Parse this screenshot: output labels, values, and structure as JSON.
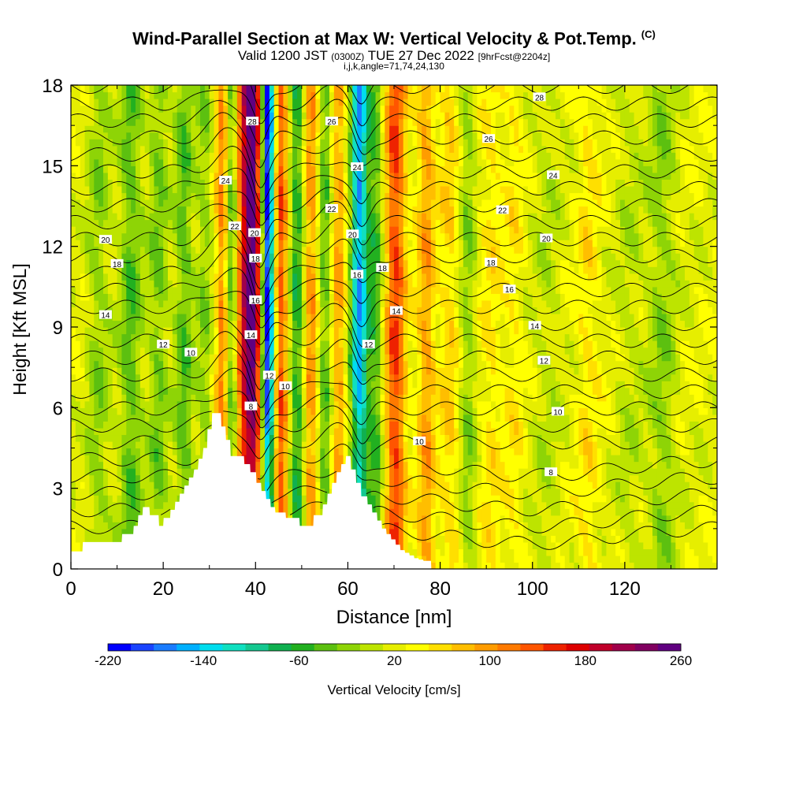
{
  "header": {
    "title": "Wind-Parallel Section at Max W: Vertical Velocity & Pot.Temp.",
    "title_mark": "(C)",
    "subtitle_pre": "Valid 1200 JST",
    "subtitle_z": "(0300Z)",
    "subtitle_date": "TUE 27 Dec 2022",
    "subtitle_fcst": "[9hrFcst@2204z]",
    "subtitle2": "i,j,k,angle=71,74,24,130"
  },
  "colorbar": {
    "label": "Vertical Velocity [cm/s]",
    "tick_labels": [
      "-220",
      "-140",
      "-60",
      "20",
      "100",
      "180",
      "260"
    ],
    "tick_values": [
      -220,
      -140,
      -60,
      20,
      100,
      180,
      260
    ],
    "colors": [
      "#0000ff",
      "#1a44ff",
      "#1a7cff",
      "#00b0ff",
      "#00ddee",
      "#10e0c0",
      "#14c890",
      "#10b050",
      "#22b020",
      "#5cc010",
      "#8ed406",
      "#bde400",
      "#e6ee00",
      "#ffff00",
      "#ffdf00",
      "#ffbe00",
      "#ff9c00",
      "#ff7a00",
      "#ff5500",
      "#ee2200",
      "#dd0000",
      "#c0002a",
      "#a0004a",
      "#800060",
      "#600080"
    ]
  },
  "chart_data": {
    "type": "heatmap",
    "title": "Wind-Parallel Section at Max W: Vertical Velocity & Pot.Temp.",
    "xlabel": "Distance [nm]",
    "ylabel": "Height [Kft MSL]",
    "xlim": [
      0,
      140
    ],
    "ylim": [
      0,
      18
    ],
    "x_ticks": [
      0,
      20,
      40,
      60,
      80,
      100,
      120
    ],
    "y_ticks": [
      0,
      3,
      6,
      9,
      12,
      15,
      18
    ],
    "x_tick_labels": [
      "0",
      "20",
      "40",
      "60",
      "80",
      "100",
      "120"
    ],
    "y_tick_labels": [
      "0",
      "3",
      "6",
      "9",
      "12",
      "15",
      "18"
    ],
    "field": "Vertical Velocity [cm/s]",
    "field_range": [
      -220,
      260
    ],
    "velocity_bands": [
      {
        "x": 6,
        "w": 2.5,
        "value": -40
      },
      {
        "x": 13,
        "w": 2.5,
        "value": -60
      },
      {
        "x": 19,
        "w": 2.0,
        "value": -50
      },
      {
        "x": 24.5,
        "w": 2.0,
        "value": -60
      },
      {
        "x": 29,
        "w": 1.8,
        "value": -40
      },
      {
        "x": 33,
        "w": 1.6,
        "value": 100
      },
      {
        "x": 34.6,
        "w": 1.4,
        "value": -90
      },
      {
        "x": 37,
        "w": 1.5,
        "value": 90
      },
      {
        "x": 39.3,
        "w": 1.8,
        "value": 240
      },
      {
        "x": 42.7,
        "w": 1.3,
        "value": -240
      },
      {
        "x": 45.5,
        "w": 1.5,
        "value": 110
      },
      {
        "x": 49,
        "w": 1.6,
        "value": -80
      },
      {
        "x": 52,
        "w": 1.5,
        "value": 80
      },
      {
        "x": 55,
        "w": 1.4,
        "value": -60
      },
      {
        "x": 58,
        "w": 1.5,
        "value": 70
      },
      {
        "x": 62.5,
        "w": 1.8,
        "value": -180
      },
      {
        "x": 66,
        "w": 1.6,
        "value": -70
      },
      {
        "x": 70.3,
        "w": 2.2,
        "value": 120
      },
      {
        "x": 77,
        "w": 2.0,
        "value": 70
      },
      {
        "x": 82,
        "w": 2.0,
        "value": 40
      },
      {
        "x": 86,
        "w": 1.8,
        "value": -40
      },
      {
        "x": 91,
        "w": 2.5,
        "value": 30
      },
      {
        "x": 96,
        "w": 2.0,
        "value": 25
      },
      {
        "x": 103,
        "w": 3.0,
        "value": -20
      },
      {
        "x": 112,
        "w": 2.5,
        "value": 30
      },
      {
        "x": 121,
        "w": 3.0,
        "value": -20
      },
      {
        "x": 128,
        "w": 3.0,
        "value": -40
      }
    ],
    "terrain": {
      "x": [
        0,
        2.5,
        2.6,
        11,
        11.1,
        13.5,
        13.6,
        14.5,
        14.6,
        15.5,
        15.6,
        17,
        17.1,
        19,
        19.1,
        20,
        20.1,
        21.5,
        21.6,
        22.5,
        22.6,
        23.5,
        23.6,
        24.5,
        24.6,
        25.5,
        25.6,
        26.5,
        26.7,
        27.5,
        27.7,
        28.5,
        28.7,
        29.5,
        29.6,
        30.5,
        30.6,
        32.5,
        32.6,
        33.5,
        33.6,
        34.5,
        34.6,
        37.5,
        37.6,
        38.8,
        38.9,
        40.1,
        40.2,
        41.2,
        41.3,
        42.2,
        42.3,
        43.2,
        43.3,
        44.2,
        44.3,
        46.5,
        46.6,
        49.5,
        49.6,
        52.5,
        52.6,
        54.5,
        54.6,
        55.5,
        55.6,
        56.5,
        56.6,
        57.5,
        57.6,
        58.5,
        58.6,
        59.5,
        59.6,
        60.6,
        60.7,
        61.7,
        61.8,
        62.8,
        62.9,
        64.2,
        64.3,
        65.2,
        65.3,
        66.3,
        66.4,
        67.3,
        67.4,
        68.3,
        68.4,
        69.3,
        69.4,
        70.3,
        70.4,
        71.3,
        71.4,
        72.3,
        72.4,
        73.3,
        73.4,
        74.3,
        74.4,
        75.3,
        75.4,
        76.3,
        76.4,
        78,
        78.1,
        140
      ],
      "y": [
        0.65,
        0.65,
        1.0,
        1.0,
        1.3,
        1.3,
        1.6,
        1.6,
        2.0,
        2.0,
        2.3,
        2.3,
        2.0,
        2.0,
        1.6,
        1.6,
        1.9,
        1.9,
        2.2,
        2.2,
        2.5,
        2.5,
        2.8,
        2.8,
        3.1,
        3.1,
        3.4,
        3.4,
        3.7,
        3.7,
        4.1,
        4.1,
        4.5,
        4.5,
        5.2,
        5.2,
        5.8,
        5.8,
        5.3,
        5.3,
        4.8,
        4.8,
        4.2,
        4.2,
        3.9,
        3.9,
        3.6,
        3.6,
        3.2,
        3.2,
        2.9,
        2.9,
        2.6,
        2.6,
        2.3,
        2.3,
        2.1,
        2.1,
        1.9,
        1.9,
        1.6,
        1.6,
        2.0,
        2.0,
        2.4,
        2.4,
        2.8,
        2.8,
        3.2,
        3.2,
        3.6,
        3.6,
        3.9,
        3.9,
        4.2,
        4.2,
        3.7,
        3.7,
        3.2,
        3.2,
        2.7,
        2.7,
        2.4,
        2.4,
        2.1,
        2.1,
        1.8,
        1.8,
        1.5,
        1.5,
        1.3,
        1.3,
        1.1,
        1.1,
        0.9,
        0.9,
        0.7,
        0.7,
        0.6,
        0.6,
        0.5,
        0.5,
        0.4,
        0.4,
        0.35,
        0.35,
        0.3,
        0.3,
        0.0,
        0.0
      ]
    },
    "isentrope_levels": [
      2,
      3,
      4,
      5,
      6,
      7,
      8,
      9,
      10,
      11,
      12,
      13,
      14,
      15,
      16,
      17,
      18,
      19,
      20,
      21,
      22,
      23,
      24,
      25,
      26,
      27,
      28
    ],
    "contour_labels": [
      {
        "text": "28",
        "x": 101.5,
        "y": 17.55
      },
      {
        "text": "26",
        "x": 56.5,
        "y": 16.65
      },
      {
        "text": "26",
        "x": 90.5,
        "y": 16.0
      },
      {
        "text": "28",
        "x": 39.3,
        "y": 16.65
      },
      {
        "text": "24",
        "x": 33.5,
        "y": 14.45
      },
      {
        "text": "24",
        "x": 62.0,
        "y": 14.95
      },
      {
        "text": "24",
        "x": 104.5,
        "y": 14.65
      },
      {
        "text": "22",
        "x": 56.5,
        "y": 13.4
      },
      {
        "text": "22",
        "x": 93.5,
        "y": 13.35
      },
      {
        "text": "22",
        "x": 35.5,
        "y": 12.75
      },
      {
        "text": "20",
        "x": 61.0,
        "y": 12.45
      },
      {
        "text": "20",
        "x": 39.8,
        "y": 12.5
      },
      {
        "text": "20",
        "x": 7.5,
        "y": 12.25
      },
      {
        "text": "20",
        "x": 103.0,
        "y": 12.3
      },
      {
        "text": "18",
        "x": 10.0,
        "y": 11.35
      },
      {
        "text": "18",
        "x": 40.0,
        "y": 11.55
      },
      {
        "text": "18",
        "x": 67.5,
        "y": 11.2
      },
      {
        "text": "18",
        "x": 91.0,
        "y": 11.4
      },
      {
        "text": "16",
        "x": 62.0,
        "y": 10.95
      },
      {
        "text": "16",
        "x": 40.0,
        "y": 10.0
      },
      {
        "text": "16",
        "x": 95.0,
        "y": 10.4
      },
      {
        "text": "14",
        "x": 7.5,
        "y": 9.45
      },
      {
        "text": "14",
        "x": 70.5,
        "y": 9.6
      },
      {
        "text": "14",
        "x": 100.5,
        "y": 9.05
      },
      {
        "text": "14",
        "x": 39.0,
        "y": 8.7
      },
      {
        "text": "12",
        "x": 20.0,
        "y": 8.35
      },
      {
        "text": "12",
        "x": 64.5,
        "y": 8.35
      },
      {
        "text": "12",
        "x": 102.5,
        "y": 7.75
      },
      {
        "text": "12",
        "x": 43.0,
        "y": 7.2
      },
      {
        "text": "10",
        "x": 26.0,
        "y": 8.05
      },
      {
        "text": "10",
        "x": 46.5,
        "y": 6.8
      },
      {
        "text": "10",
        "x": 105.5,
        "y": 5.85
      },
      {
        "text": "10",
        "x": 75.5,
        "y": 4.75
      },
      {
        "text": "8",
        "x": 39.0,
        "y": 6.05
      },
      {
        "text": "8",
        "x": 104.0,
        "y": 3.6
      }
    ]
  }
}
